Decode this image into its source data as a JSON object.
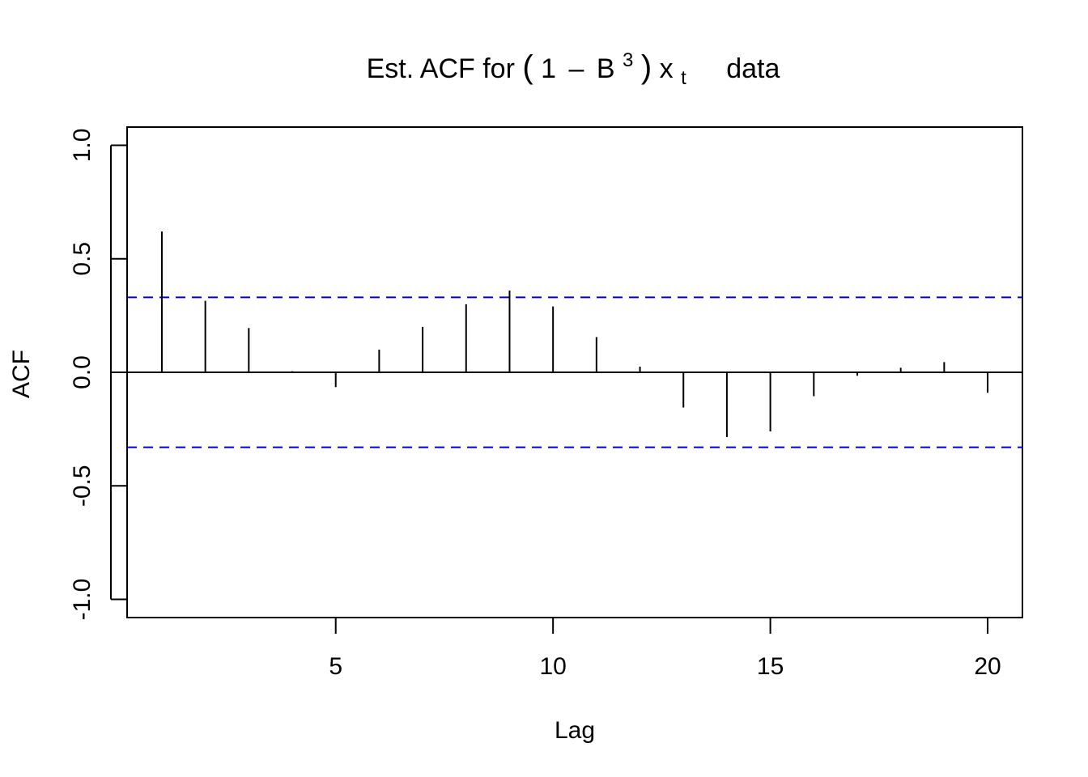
{
  "chart_data": {
    "type": "bar",
    "title": {
      "prefix": "Est. ACF for ",
      "formula": {
        "open": "(",
        "one": "1",
        "minus": "–",
        "b": "B",
        "exp": "3",
        "close": ")",
        "x": "x",
        "sub": "t"
      },
      "suffix": "data"
    },
    "xlabel": "Lag",
    "ylabel": "ACF",
    "xlim": [
      0.2,
      20.8
    ],
    "ylim": [
      -1.08,
      1.08
    ],
    "xticks": [
      5,
      10,
      15,
      20
    ],
    "xtick_labels": [
      "5",
      "10",
      "15",
      "20"
    ],
    "yticks": [
      -1.0,
      -0.5,
      0.0,
      0.5,
      1.0
    ],
    "ytick_labels": [
      "-1.0",
      "-0.5",
      "0.0",
      "0.5",
      "1.0"
    ],
    "lags": [
      1,
      2,
      3,
      4,
      5,
      6,
      7,
      8,
      9,
      10,
      11,
      12,
      13,
      14,
      15,
      16,
      17,
      18,
      19,
      20
    ],
    "values": [
      0.62,
      0.315,
      0.195,
      0.005,
      -0.065,
      0.1,
      0.2,
      0.3,
      0.36,
      0.29,
      0.155,
      0.025,
      -0.155,
      -0.285,
      -0.26,
      -0.105,
      -0.015,
      0.02,
      0.045,
      -0.09
    ],
    "confidence_bound": 0.33,
    "colors": {
      "bars": "#000000",
      "confidence": "#0000cc",
      "axis": "#000000"
    }
  }
}
